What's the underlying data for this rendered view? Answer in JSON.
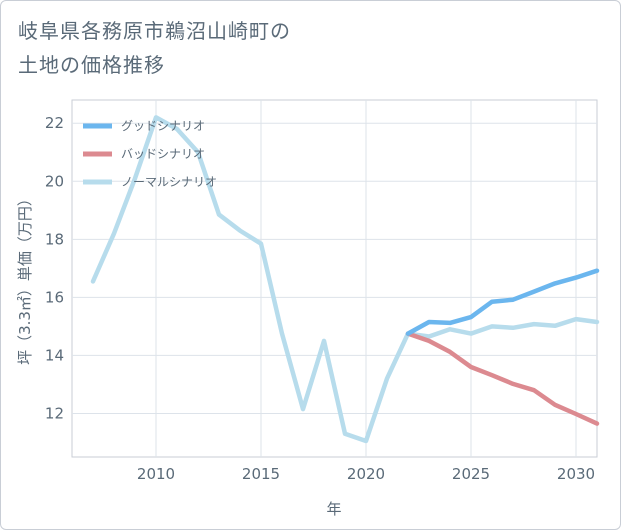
{
  "title_lines": [
    "岐阜県各務原市鵜沼山崎町の",
    "土地の価格推移"
  ],
  "chart_data": {
    "type": "line",
    "xlabel": "年",
    "ylabel": "坪（3.3㎡）単価（万円）",
    "xlim": [
      2006,
      2031
    ],
    "ylim": [
      10.5,
      22.8
    ],
    "xticks": [
      2010,
      2015,
      2020,
      2025,
      2030
    ],
    "yticks": [
      12,
      14,
      16,
      18,
      20,
      22
    ],
    "grid": true,
    "legend_position": "top-left",
    "series": [
      {
        "name": "グッドシナリオ",
        "color": "#6bb6ee",
        "x": [
          2022,
          2023,
          2024,
          2025,
          2026,
          2027,
          2028,
          2029,
          2030,
          2031
        ],
        "y": [
          14.75,
          15.15,
          15.12,
          15.32,
          15.85,
          15.92,
          16.2,
          16.48,
          16.68,
          16.92
        ]
      },
      {
        "name": "バッドシナリオ",
        "color": "#dc8a90",
        "x": [
          2022,
          2023,
          2024,
          2025,
          2026,
          2027,
          2028,
          2029,
          2030,
          2031
        ],
        "y": [
          14.75,
          14.5,
          14.12,
          13.6,
          13.32,
          13.02,
          12.8,
          12.3,
          11.98,
          11.65
        ]
      },
      {
        "name": "ノーマルシナリオ",
        "color": "#b7dcec",
        "x": [
          2007,
          2008,
          2009,
          2010,
          2011,
          2012,
          2013,
          2014,
          2015,
          2016,
          2017,
          2018,
          2019,
          2020,
          2021,
          2022,
          2023,
          2024,
          2025,
          2026,
          2027,
          2028,
          2029,
          2030,
          2031
        ],
        "y": [
          16.55,
          18.2,
          20.1,
          22.2,
          21.8,
          21.0,
          18.85,
          18.3,
          17.85,
          14.75,
          12.15,
          14.5,
          11.3,
          11.05,
          13.2,
          14.75,
          14.65,
          14.9,
          14.75,
          15.0,
          14.95,
          15.08,
          15.02,
          15.25,
          15.15
        ]
      }
    ]
  }
}
